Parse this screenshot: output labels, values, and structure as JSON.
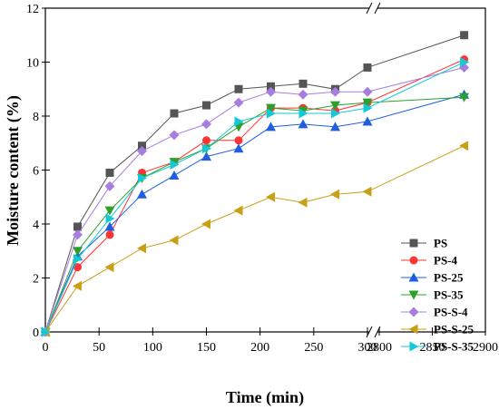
{
  "chart_data": {
    "type": "line",
    "xlabel": "Time (min)",
    "ylabel": "Moisture content (%)",
    "ylim": [
      0,
      12
    ],
    "x_segments": [
      {
        "range": [
          0,
          300
        ],
        "ticks": [
          0,
          50,
          100,
          150,
          200,
          250,
          300
        ]
      },
      {
        "range": [
          2800,
          2900
        ],
        "ticks": [
          2800,
          2850,
          2900
        ]
      }
    ],
    "y_ticks": [
      0,
      2,
      4,
      6,
      8,
      10,
      12
    ],
    "axis_break": true,
    "grid": false,
    "legend_position": "bottom-right",
    "x": [
      0,
      30,
      60,
      90,
      120,
      150,
      180,
      210,
      240,
      270,
      300,
      2880
    ],
    "series": [
      {
        "name": "PS",
        "color": "#555555",
        "marker": "square",
        "values": [
          0,
          3.9,
          5.9,
          6.9,
          8.1,
          8.4,
          9.0,
          9.1,
          9.2,
          9.0,
          9.8,
          11.0
        ]
      },
      {
        "name": "PS-4",
        "color": "#ff3333",
        "marker": "circle",
        "values": [
          0,
          2.4,
          3.6,
          5.9,
          6.3,
          7.1,
          7.1,
          8.3,
          8.3,
          8.2,
          8.5,
          10.1
        ]
      },
      {
        "name": "PS-25",
        "color": "#1f5fdf",
        "marker": "triangle-up",
        "values": [
          0,
          2.8,
          3.9,
          5.1,
          5.8,
          6.5,
          6.8,
          7.6,
          7.7,
          7.6,
          7.8,
          8.8
        ]
      },
      {
        "name": "PS-35",
        "color": "#2ca02c",
        "marker": "triangle-down",
        "values": [
          0,
          3.0,
          4.5,
          5.7,
          6.3,
          6.8,
          7.6,
          8.3,
          8.2,
          8.4,
          8.5,
          8.7
        ]
      },
      {
        "name": "PS-S-4",
        "color": "#a77ee0",
        "marker": "diamond",
        "values": [
          0,
          3.6,
          5.4,
          6.7,
          7.3,
          7.7,
          8.5,
          8.9,
          8.8,
          8.9,
          8.9,
          9.8
        ]
      },
      {
        "name": "PS-S-25",
        "color": "#c8a016",
        "marker": "triangle-left",
        "values": [
          0,
          1.7,
          2.4,
          3.1,
          3.4,
          4.0,
          4.5,
          5.0,
          4.8,
          5.1,
          5.2,
          6.9
        ]
      },
      {
        "name": "PS-S-35",
        "color": "#13c9d6",
        "marker": "triangle-right",
        "values": [
          0,
          2.7,
          4.2,
          5.7,
          6.2,
          6.8,
          7.8,
          8.1,
          8.1,
          8.1,
          8.3,
          10.0
        ]
      }
    ]
  }
}
